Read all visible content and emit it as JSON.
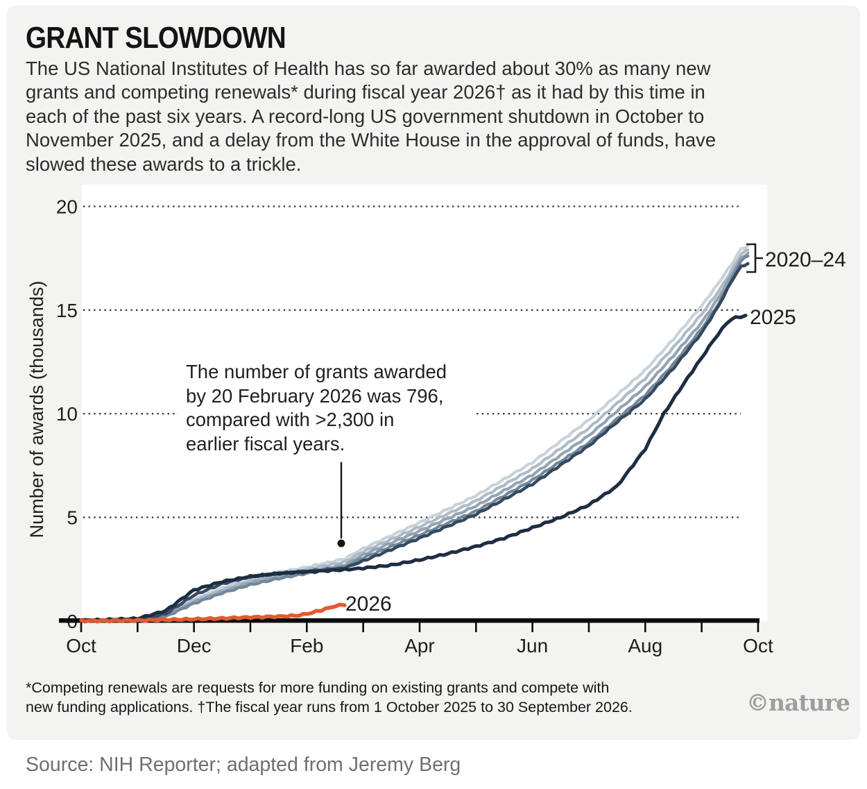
{
  "header": {
    "title": "GRANT SLOWDOWN",
    "subtitle": "The US National Institutes of Health has so far awarded about 30% as many new\ngrants and competing renewals* during fiscal year 2026† as it had by this time in\neach of the past six years. A record-long US government shutdown in October to\nNovember 2025, and a delay from the White House in the approval of funds, have\nslowed these awards to a trickle."
  },
  "chart_data": {
    "type": "line",
    "ylabel": "Number of awards (thousands)",
    "ylim": [
      0,
      20
    ],
    "yticks": [
      0,
      5,
      10,
      15,
      20
    ],
    "xticklabels": [
      "Oct",
      "Dec",
      "Feb",
      "Apr",
      "Jun",
      "Aug",
      "Oct"
    ],
    "x_unit": "months since 1 October (fiscal year)",
    "grid": "dotted horizontal gridlines",
    "legend_position": "end-of-line labels",
    "annotation": {
      "text": "The number of grants awarded\nby 20 February 2026 was 796,\ncompared with >2,300 in\nearlier fiscal years.",
      "awards_by_20_feb_2026": 796,
      "awards_by_20_feb_earlier_years": ">2,300"
    },
    "labels": {
      "group": "2020–24",
      "y2025": "2025",
      "y2026": "2026"
    },
    "series": [
      {
        "name": "FY2020",
        "color": "#c9d2da",
        "points": [
          [
            0,
            0.02
          ],
          [
            1,
            0.07
          ],
          [
            1.5,
            0.3
          ],
          [
            2,
            1.05
          ],
          [
            2.5,
            1.6
          ],
          [
            3,
            2.05
          ],
          [
            3.5,
            2.35
          ],
          [
            4,
            2.6
          ],
          [
            4.67,
            3.0
          ],
          [
            5,
            3.5
          ],
          [
            6,
            4.75
          ],
          [
            7,
            6.05
          ],
          [
            8,
            7.65
          ],
          [
            9,
            9.7
          ],
          [
            10,
            12.1
          ],
          [
            10.5,
            13.6
          ],
          [
            11,
            15.2
          ],
          [
            11.3,
            16.3
          ],
          [
            11.55,
            17.3
          ],
          [
            11.7,
            17.95
          ],
          [
            11.82,
            18.1
          ]
        ]
      },
      {
        "name": "FY2021",
        "color": "#aebbc7",
        "points": [
          [
            0,
            0.02
          ],
          [
            1,
            0.06
          ],
          [
            1.5,
            0.27
          ],
          [
            2,
            1.0
          ],
          [
            2.5,
            1.5
          ],
          [
            3,
            1.95
          ],
          [
            3.5,
            2.25
          ],
          [
            4,
            2.5
          ],
          [
            4.67,
            2.85
          ],
          [
            5,
            3.35
          ],
          [
            6,
            4.55
          ],
          [
            7,
            5.8
          ],
          [
            8,
            7.35
          ],
          [
            9,
            9.3
          ],
          [
            10,
            11.7
          ],
          [
            10.5,
            13.2
          ],
          [
            11,
            14.8
          ],
          [
            11.3,
            15.9
          ],
          [
            11.55,
            17.0
          ],
          [
            11.7,
            17.7
          ],
          [
            11.82,
            17.9
          ]
        ]
      },
      {
        "name": "FY2022",
        "color": "#93a3b2",
        "points": [
          [
            0,
            0.02
          ],
          [
            1,
            0.05
          ],
          [
            1.5,
            0.24
          ],
          [
            2,
            0.92
          ],
          [
            2.5,
            1.42
          ],
          [
            3,
            1.85
          ],
          [
            3.5,
            2.15
          ],
          [
            4,
            2.4
          ],
          [
            4.67,
            2.7
          ],
          [
            5,
            3.2
          ],
          [
            6,
            4.35
          ],
          [
            7,
            5.55
          ],
          [
            8,
            7.05
          ],
          [
            9,
            8.95
          ],
          [
            10,
            11.3
          ],
          [
            10.5,
            12.8
          ],
          [
            11,
            14.4
          ],
          [
            11.3,
            15.6
          ],
          [
            11.55,
            16.8
          ],
          [
            11.7,
            17.5
          ],
          [
            11.82,
            17.75
          ]
        ]
      },
      {
        "name": "FY2023",
        "color": "#73879a",
        "points": [
          [
            0,
            0.02
          ],
          [
            1,
            0.05
          ],
          [
            1.5,
            0.22
          ],
          [
            2,
            0.85
          ],
          [
            2.5,
            1.35
          ],
          [
            3,
            1.75
          ],
          [
            3.5,
            2.05
          ],
          [
            4,
            2.3
          ],
          [
            4.67,
            2.6
          ],
          [
            5,
            3.05
          ],
          [
            6,
            4.15
          ],
          [
            7,
            5.3
          ],
          [
            8,
            6.8
          ],
          [
            9,
            8.6
          ],
          [
            10,
            10.9
          ],
          [
            10.5,
            12.4
          ],
          [
            11,
            14.1
          ],
          [
            11.3,
            15.3
          ],
          [
            11.55,
            16.6
          ],
          [
            11.7,
            17.4
          ],
          [
            11.82,
            17.6
          ]
        ]
      },
      {
        "name": "FY2024",
        "color": "#35495f",
        "points": [
          [
            0,
            0.02
          ],
          [
            1,
            0.08
          ],
          [
            1.5,
            0.35
          ],
          [
            2,
            1.25
          ],
          [
            2.5,
            1.8
          ],
          [
            3,
            2.15
          ],
          [
            3.5,
            2.3
          ],
          [
            4,
            2.4
          ],
          [
            4.67,
            2.55
          ],
          [
            5,
            2.9
          ],
          [
            6,
            4.0
          ],
          [
            7,
            5.15
          ],
          [
            8,
            6.6
          ],
          [
            9,
            8.45
          ],
          [
            9.5,
            9.6
          ],
          [
            10,
            10.7
          ],
          [
            10.5,
            12.2
          ],
          [
            11,
            13.9
          ],
          [
            11.3,
            15.2
          ],
          [
            11.55,
            16.5
          ],
          [
            11.7,
            17.1
          ],
          [
            11.82,
            17.25
          ]
        ]
      },
      {
        "name": "FY2025",
        "color": "#1d2e43",
        "points": [
          [
            0,
            0.02
          ],
          [
            1,
            0.12
          ],
          [
            1.5,
            0.5
          ],
          [
            2,
            1.5
          ],
          [
            2.5,
            1.9
          ],
          [
            3,
            2.15
          ],
          [
            3.5,
            2.3
          ],
          [
            4,
            2.38
          ],
          [
            4.3,
            2.42
          ],
          [
            4.67,
            2.48
          ],
          [
            5,
            2.55
          ],
          [
            5.5,
            2.7
          ],
          [
            6,
            2.95
          ],
          [
            6.5,
            3.25
          ],
          [
            7,
            3.6
          ],
          [
            7.5,
            4.0
          ],
          [
            8,
            4.5
          ],
          [
            8.5,
            5.0
          ],
          [
            9,
            5.6
          ],
          [
            9.5,
            6.5
          ],
          [
            10,
            8.3
          ],
          [
            10.33,
            10.0
          ],
          [
            10.67,
            11.4
          ],
          [
            11,
            12.7
          ],
          [
            11.2,
            13.5
          ],
          [
            11.45,
            14.4
          ],
          [
            11.6,
            14.65
          ],
          [
            11.78,
            14.7
          ]
        ]
      },
      {
        "name": "FY2026",
        "color": "#e05a32",
        "points": [
          [
            0,
            0.01
          ],
          [
            1,
            0.03
          ],
          [
            2,
            0.09
          ],
          [
            2.5,
            0.13
          ],
          [
            3,
            0.18
          ],
          [
            3.5,
            0.22
          ],
          [
            3.8,
            0.26
          ],
          [
            4,
            0.34
          ],
          [
            4.25,
            0.52
          ],
          [
            4.5,
            0.72
          ],
          [
            4.67,
            0.8
          ]
        ]
      }
    ]
  },
  "footer": {
    "footnote": "*Competing renewals are requests for more funding on existing grants and compete with\nnew funding applications. †The fiscal year runs from 1 October 2025 to 30 September 2026.",
    "credit": "©nature",
    "source": "Source: NIH Reporter; adapted from Jeremy Berg"
  }
}
